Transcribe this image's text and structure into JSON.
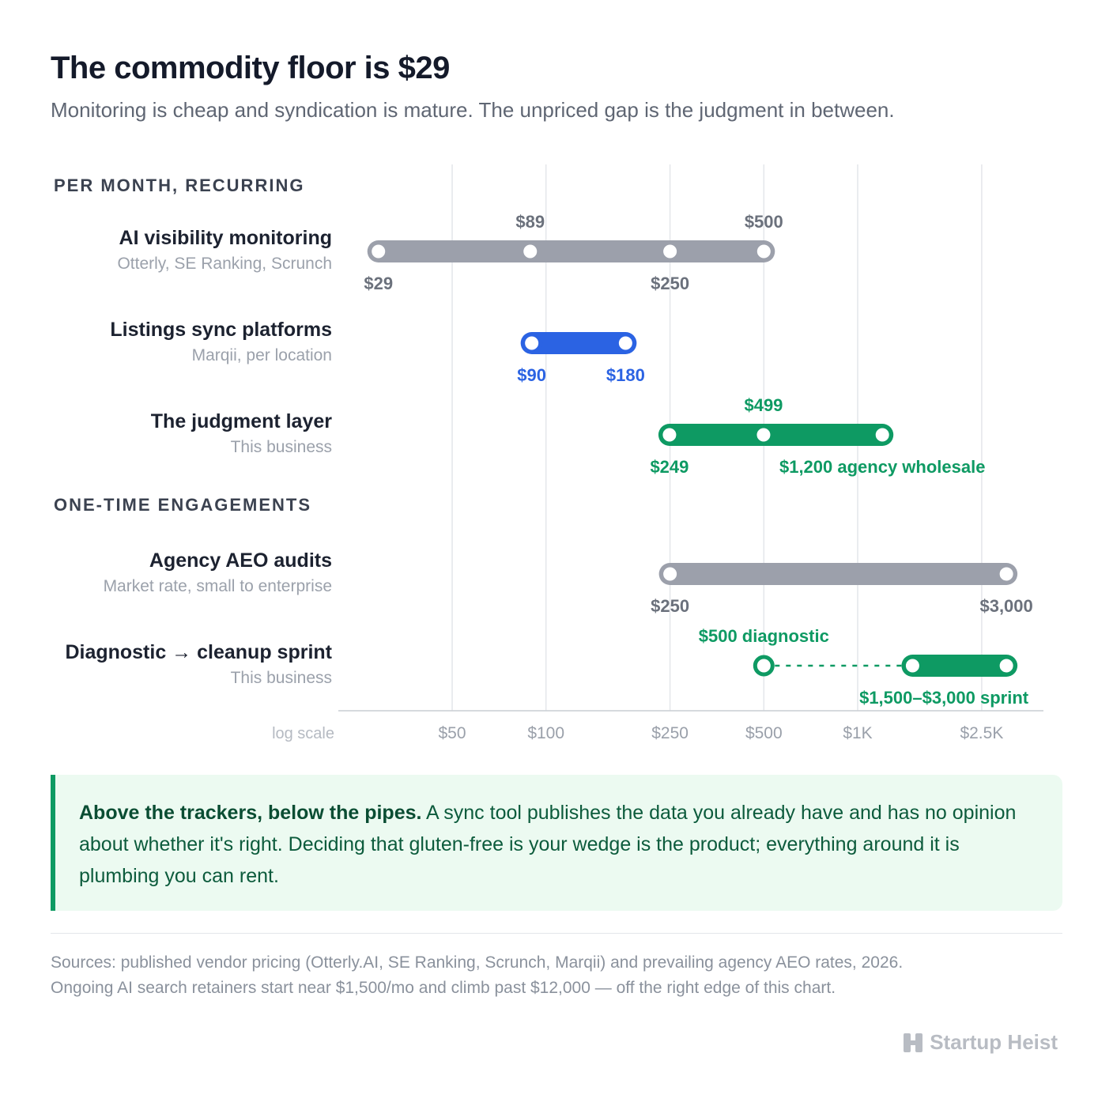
{
  "header": {
    "title": "The commodity floor is $29",
    "subtitle": "Monitoring is cheap and syndication is mature. The unpriced gap is the judgment in between."
  },
  "colors": {
    "gray": "#9ca0ab",
    "blue": "#2b63e3",
    "green": "#0e9a63",
    "grid": "#e4e6ea",
    "label_gray": "#6b717c"
  },
  "chart_data": {
    "type": "range",
    "scale": "log",
    "scale_label": "log scale",
    "xlim": [
      24,
      3300
    ],
    "ticks": [
      {
        "value": 50,
        "label": "$50"
      },
      {
        "value": 100,
        "label": "$100"
      },
      {
        "value": 250,
        "label": "$250"
      },
      {
        "value": 500,
        "label": "$500"
      },
      {
        "value": 1000,
        "label": "$1K"
      },
      {
        "value": 2500,
        "label": "$2.5K"
      }
    ],
    "sections": [
      {
        "heading": "PER MONTH, RECURRING",
        "rows": [
          {
            "name": "AI visibility monitoring",
            "sub": "Otterly, SE Ranking, Scrunch",
            "color": "gray",
            "range": [
              29,
              500
            ],
            "points": [
              {
                "value": 29,
                "label": "$29",
                "pos": "below"
              },
              {
                "value": 89,
                "label": "$89",
                "pos": "above"
              },
              {
                "value": 250,
                "label": "$250",
                "pos": "below"
              },
              {
                "value": 500,
                "label": "$500",
                "pos": "above"
              }
            ]
          },
          {
            "name": "Listings sync platforms",
            "sub": "Marqii, per location",
            "color": "blue",
            "range": [
              90,
              180
            ],
            "points": [
              {
                "value": 90,
                "label": "$90",
                "pos": "below"
              },
              {
                "value": 180,
                "label": "$180",
                "pos": "below"
              }
            ]
          },
          {
            "name": "The judgment layer",
            "sub": "This business",
            "color": "green",
            "range": [
              249,
              1200
            ],
            "points": [
              {
                "value": 249,
                "label": "$249",
                "pos": "below"
              },
              {
                "value": 499,
                "label": "$499",
                "pos": "above"
              },
              {
                "value": 1200,
                "label": "$1,200 agency wholesale",
                "pos": "below"
              }
            ]
          }
        ]
      },
      {
        "heading": "ONE-TIME ENGAGEMENTS",
        "rows": [
          {
            "name": "Agency AEO audits",
            "sub": "Market rate, small to enterprise",
            "color": "gray",
            "range": [
              250,
              3000
            ],
            "points": [
              {
                "value": 250,
                "label": "$250",
                "pos": "below"
              },
              {
                "value": 3000,
                "label": "$3,000",
                "pos": "below"
              }
            ]
          },
          {
            "name": "Diagnostic → cleanup sprint",
            "sub": "This business",
            "color": "green",
            "range": [
              1500,
              3000
            ],
            "dashed_from": 500,
            "points": [
              {
                "value": 500,
                "label": "$500 diagnostic",
                "pos": "above"
              },
              {
                "value": 1500,
                "label": "",
                "pos": "none"
              },
              {
                "value": 3000,
                "label": "$1,500–$3,000 sprint",
                "pos": "below"
              }
            ]
          }
        ]
      }
    ]
  },
  "callout": {
    "lead": "Above the trackers, below the pipes.",
    "body": " A sync tool publishes the data you already have and has no opinion about whether it's right. Deciding that gluten-free is your wedge is the product; everything around it is plumbing you can rent."
  },
  "sources": {
    "line1": "Sources: published vendor pricing (Otterly.AI, SE Ranking, Scrunch, Marqii) and prevailing agency AEO rates, 2026.",
    "line2": "Ongoing AI search retainers start near $1,500/mo and climb past $12,000 — off the right edge of this chart."
  },
  "brand": {
    "name": "Startup Heist",
    "icon": "h-logo-icon"
  }
}
